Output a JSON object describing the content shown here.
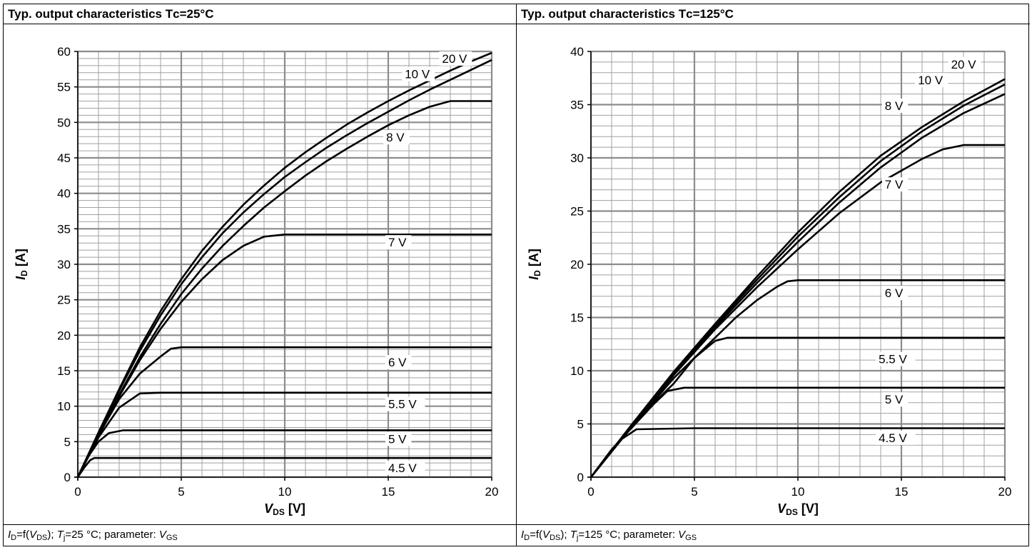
{
  "charts": [
    {
      "title": "Typ. output characteristics Tᴄ=25°C",
      "footer": {
        "id_sym": "I",
        "id_sub": "D",
        "eq": "=f(",
        "v_sym": "V",
        "v_sub": "DS",
        "close": ");",
        "tj_sym": "T",
        "tj_sub": "j",
        "tj_val": "=25 °C; parameter:",
        "vgs_sym": "V",
        "vgs_sub": "GS"
      }
    },
    {
      "title": "Typ. output characteristics Tᴄ=125°C",
      "footer": {
        "id_sym": "I",
        "id_sub": "D",
        "eq": "=f(",
        "v_sym": "V",
        "v_sub": "DS",
        "close": ");",
        "tj_sym": "T",
        "tj_sub": "j",
        "tj_val": "=125 °C; parameter:",
        "vgs_sym": "V",
        "vgs_sub": "GS"
      }
    }
  ],
  "chart_data": [
    {
      "type": "line",
      "xlabel": "VDS [V]",
      "ylabel": "ID [A]",
      "xlim": [
        0,
        20
      ],
      "ylim": [
        0,
        60
      ],
      "xticks": [
        0,
        5,
        10,
        15,
        20
      ],
      "yticks": [
        0,
        5,
        10,
        15,
        20,
        25,
        30,
        35,
        40,
        45,
        50,
        55,
        60
      ],
      "x_minor_step": 1,
      "y_minor_step": 1,
      "grid": true,
      "line_color": "#000000",
      "grid_color": "#a0a0a0",
      "series": [
        {
          "name": "20 V",
          "x": [
            0,
            1,
            2,
            3,
            4,
            5,
            6,
            7,
            8,
            9,
            10,
            11,
            12,
            13,
            14,
            15,
            16,
            17,
            18,
            19,
            20
          ],
          "y": [
            0,
            6.3,
            12.4,
            18.3,
            23.4,
            27.9,
            31.9,
            35.3,
            38.4,
            41.1,
            43.6,
            45.8,
            47.8,
            49.7,
            51.4,
            53.0,
            54.5,
            55.9,
            57.3,
            58.6,
            59.8
          ]
        },
        {
          "name": "10 V",
          "x": [
            0,
            1,
            2,
            3,
            4,
            5,
            6,
            7,
            8,
            9,
            10,
            11,
            12,
            13,
            14,
            15,
            16,
            17,
            18,
            19,
            20
          ],
          "y": [
            0,
            6.2,
            12.2,
            17.8,
            22.8,
            27.2,
            31.0,
            34.4,
            37.3,
            39.9,
            42.3,
            44.4,
            46.4,
            48.2,
            49.9,
            51.5,
            53.1,
            54.6,
            56.0,
            57.4,
            58.8
          ]
        },
        {
          "name": "8 V",
          "x": [
            0,
            1,
            2,
            3,
            4,
            5,
            6,
            7,
            8,
            9,
            10,
            11,
            12,
            13,
            14,
            15,
            16,
            17,
            18,
            19,
            20
          ],
          "y": [
            0,
            5.8,
            11.6,
            16.9,
            21.6,
            25.8,
            29.4,
            32.6,
            35.4,
            38.0,
            40.3,
            42.5,
            44.5,
            46.3,
            48.0,
            49.6,
            51.0,
            52.2,
            53.0,
            53.0,
            53.0
          ]
        },
        {
          "name": "7 V",
          "x": [
            0,
            1,
            2,
            3,
            4,
            5,
            6,
            7,
            8,
            9,
            10,
            15,
            20
          ],
          "y": [
            0,
            5.8,
            11.4,
            16.5,
            20.9,
            24.7,
            27.9,
            30.6,
            32.6,
            33.9,
            34.2,
            34.2,
            34.2
          ]
        },
        {
          "name": "6 V",
          "x": [
            0,
            1,
            2,
            3,
            4,
            4.5,
            5,
            10,
            20
          ],
          "y": [
            0,
            5.9,
            11.0,
            14.6,
            17.0,
            18.1,
            18.3,
            18.3,
            18.3
          ]
        },
        {
          "name": "5.5 V",
          "x": [
            0,
            1,
            2,
            3,
            4,
            10,
            20
          ],
          "y": [
            0,
            5.6,
            9.8,
            11.8,
            11.9,
            11.9,
            11.9
          ]
        },
        {
          "name": "5 V",
          "x": [
            0,
            0.5,
            1,
            1.5,
            2.2,
            5,
            20
          ],
          "y": [
            0,
            2.9,
            5.0,
            6.2,
            6.6,
            6.6,
            6.6
          ]
        },
        {
          "name": "4.5 V",
          "x": [
            0,
            0.3,
            0.6,
            0.8,
            1.0,
            5,
            20
          ],
          "y": [
            0,
            1.3,
            2.4,
            2.7,
            2.7,
            2.7,
            2.7
          ]
        }
      ],
      "labels": [
        {
          "text": "20 V",
          "x": 17.6,
          "y": 58.4
        },
        {
          "text": "10 V",
          "x": 15.8,
          "y": 56.2
        },
        {
          "text": "8 V",
          "x": 14.9,
          "y": 47.3
        },
        {
          "text": "7 V",
          "x": 15.0,
          "y": 32.5
        },
        {
          "text": "6 V",
          "x": 15.0,
          "y": 15.6
        },
        {
          "text": "5.5 V",
          "x": 15.0,
          "y": 9.7
        },
        {
          "text": "5 V",
          "x": 15.0,
          "y": 4.8
        },
        {
          "text": "4.5 V",
          "x": 15.0,
          "y": 0.7
        }
      ]
    },
    {
      "type": "line",
      "xlabel": "VDS [V]",
      "ylabel": "ID [A]",
      "xlim": [
        0,
        20
      ],
      "ylim": [
        0,
        40
      ],
      "xticks": [
        0,
        5,
        10,
        15,
        20
      ],
      "yticks": [
        0,
        5,
        10,
        15,
        20,
        25,
        30,
        35,
        40
      ],
      "x_minor_step": 1,
      "y_minor_step": 1,
      "grid": true,
      "line_color": "#000000",
      "grid_color": "#a0a0a0",
      "series": [
        {
          "name": "20 V",
          "x": [
            0,
            2,
            4,
            6,
            8,
            10,
            12,
            14,
            16,
            18,
            20
          ],
          "y": [
            0,
            5.0,
            9.9,
            14.4,
            18.8,
            23.0,
            26.8,
            30.2,
            32.9,
            35.3,
            37.4
          ]
        },
        {
          "name": "10 V",
          "x": [
            0,
            2,
            4,
            6,
            8,
            10,
            12,
            14,
            16,
            18,
            20
          ],
          "y": [
            0,
            5.0,
            9.8,
            14.3,
            18.5,
            22.6,
            26.3,
            29.7,
            32.5,
            34.9,
            36.9
          ]
        },
        {
          "name": "8 V",
          "x": [
            0,
            2,
            4,
            6,
            8,
            10,
            12,
            14,
            16,
            18,
            20
          ],
          "y": [
            0,
            5.0,
            9.7,
            14.1,
            18.2,
            22.1,
            25.8,
            29.1,
            31.9,
            34.2,
            36.0
          ]
        },
        {
          "name": "7 V",
          "x": [
            0,
            2,
            4,
            6,
            8,
            10,
            12,
            14,
            16,
            17,
            18,
            20
          ],
          "y": [
            0,
            4.9,
            9.6,
            13.9,
            17.8,
            21.4,
            24.8,
            27.7,
            29.9,
            30.8,
            31.2,
            31.2
          ]
        },
        {
          "name": "6 V",
          "x": [
            0,
            2,
            4,
            6,
            7,
            8,
            9,
            9.5,
            10,
            20
          ],
          "y": [
            0,
            4.8,
            9.3,
            13.1,
            15.0,
            16.6,
            17.9,
            18.4,
            18.5,
            18.5
          ]
        },
        {
          "name": "5.5 V",
          "x": [
            0,
            2,
            3,
            4,
            5,
            6,
            6.6,
            8,
            20
          ],
          "y": [
            0,
            4.8,
            6.9,
            8.8,
            11.2,
            12.8,
            13.1,
            13.1,
            13.1
          ]
        },
        {
          "name": "5 V",
          "x": [
            0,
            1,
            2,
            3,
            3.7,
            4.5,
            20
          ],
          "y": [
            0,
            2.6,
            4.7,
            6.8,
            8.1,
            8.4,
            8.4
          ]
        },
        {
          "name": "4.5 V",
          "x": [
            0,
            0.5,
            1,
            1.5,
            2.2,
            5,
            20
          ],
          "y": [
            0,
            1.2,
            2.5,
            3.6,
            4.5,
            4.6,
            4.6
          ]
        }
      ],
      "labels": [
        {
          "text": "20 V",
          "x": 17.4,
          "y": 38.4
        },
        {
          "text": "10 V",
          "x": 15.8,
          "y": 36.9
        },
        {
          "text": "8 V",
          "x": 14.2,
          "y": 34.5
        },
        {
          "text": "7 V",
          "x": 14.2,
          "y": 27.1
        },
        {
          "text": "6 V",
          "x": 14.2,
          "y": 16.9
        },
        {
          "text": "5.5 V",
          "x": 13.9,
          "y": 10.7
        },
        {
          "text": "5 V",
          "x": 14.2,
          "y": 6.9
        },
        {
          "text": "4.5 V",
          "x": 13.9,
          "y": 3.3
        }
      ]
    }
  ]
}
